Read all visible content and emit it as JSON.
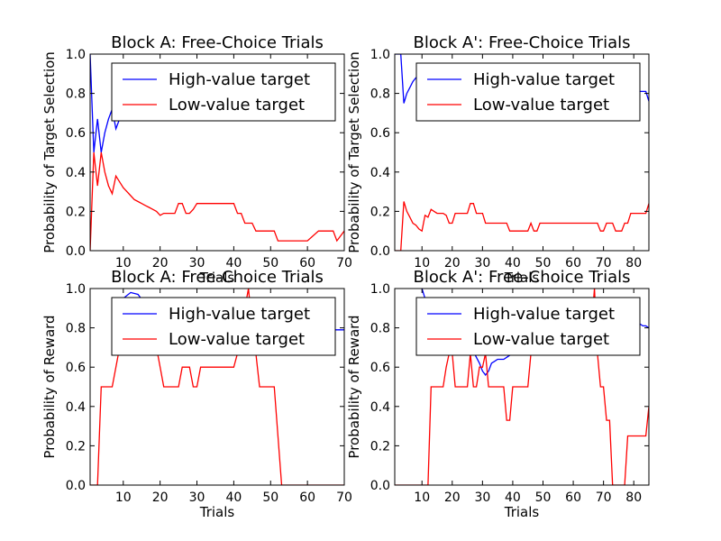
{
  "chart_data": [
    {
      "type": "line",
      "title": "Block A: Free-Choice Trials",
      "xlabel": "Trials",
      "ylabel": "Probability of Target Selection",
      "xlim": [
        1,
        70
      ],
      "ylim": [
        0,
        1
      ],
      "xticks": [
        10,
        20,
        30,
        40,
        50,
        60,
        70
      ],
      "yticks": [
        0.0,
        0.2,
        0.4,
        0.6,
        0.8,
        1.0
      ],
      "legend": "top-right",
      "series": [
        {
          "name": "High-value target",
          "color": "#0000ff",
          "x": [
            1,
            2,
            3,
            4,
            5,
            6,
            7,
            8,
            9,
            10,
            12,
            14
          ],
          "y": [
            1.0,
            0.5,
            0.67,
            0.5,
            0.6,
            0.67,
            0.72,
            0.62,
            0.67,
            0.7,
            0.73,
            0.76
          ]
        },
        {
          "name": "Low-value target",
          "color": "#ff0000",
          "x": [
            1,
            2,
            3,
            4,
            5,
            6,
            7,
            8,
            9,
            10,
            11,
            12,
            13,
            14,
            15,
            16,
            17,
            18,
            19,
            20,
            21,
            24,
            25,
            26,
            27,
            28,
            29,
            30,
            31,
            40,
            41,
            42,
            43,
            44,
            45,
            46,
            47,
            48,
            49,
            50,
            51,
            52,
            53,
            58,
            59,
            60,
            63,
            64,
            65,
            66,
            67,
            68,
            70
          ],
          "y": [
            0.0,
            0.5,
            0.33,
            0.5,
            0.4,
            0.33,
            0.29,
            0.38,
            0.35,
            0.32,
            0.3,
            0.28,
            0.26,
            0.25,
            0.24,
            0.23,
            0.22,
            0.21,
            0.2,
            0.18,
            0.19,
            0.19,
            0.24,
            0.24,
            0.19,
            0.19,
            0.21,
            0.24,
            0.24,
            0.24,
            0.19,
            0.19,
            0.14,
            0.14,
            0.14,
            0.1,
            0.1,
            0.1,
            0.1,
            0.1,
            0.1,
            0.05,
            0.05,
            0.05,
            0.05,
            0.05,
            0.1,
            0.1,
            0.1,
            0.1,
            0.1,
            0.05,
            0.1
          ]
        }
      ]
    },
    {
      "type": "line",
      "title": "Block A': Free-Choice Trials",
      "xlabel": "Trials",
      "ylabel": "Probability of Target Selection",
      "xlim": [
        1,
        85
      ],
      "ylim": [
        0,
        1
      ],
      "xticks": [
        10,
        20,
        30,
        40,
        50,
        60,
        70,
        80
      ],
      "yticks": [
        0.0,
        0.2,
        0.4,
        0.6,
        0.8,
        1.0
      ],
      "legend": "top-right",
      "series": [
        {
          "name": "High-value target",
          "color": "#0000ff",
          "x": [
            1,
            2,
            3,
            4,
            5,
            6,
            7,
            8,
            9,
            10,
            82,
            83,
            84,
            85
          ],
          "y": [
            1.0,
            1.0,
            1.0,
            0.75,
            0.8,
            0.83,
            0.86,
            0.88,
            0.89,
            0.9,
            0.81,
            0.81,
            0.81,
            0.76
          ]
        },
        {
          "name": "Low-value target",
          "color": "#ff0000",
          "x": [
            1,
            2,
            3,
            4,
            5,
            6,
            7,
            8,
            9,
            10,
            11,
            12,
            13,
            14,
            15,
            16,
            17,
            18,
            19,
            20,
            21,
            22,
            23,
            24,
            25,
            26,
            27,
            28,
            29,
            30,
            31,
            32,
            33,
            34,
            35,
            36,
            37,
            38,
            39,
            40,
            41,
            42,
            43,
            44,
            45,
            46,
            47,
            48,
            49,
            50,
            51,
            52,
            66,
            67,
            68,
            69,
            70,
            71,
            72,
            73,
            74,
            75,
            76,
            77,
            78,
            79,
            80,
            81,
            82,
            83,
            84,
            85
          ],
          "y": [
            0.0,
            0.0,
            0.0,
            0.25,
            0.2,
            0.17,
            0.14,
            0.13,
            0.11,
            0.1,
            0.18,
            0.17,
            0.21,
            0.2,
            0.19,
            0.19,
            0.19,
            0.18,
            0.14,
            0.14,
            0.19,
            0.19,
            0.19,
            0.19,
            0.19,
            0.24,
            0.24,
            0.19,
            0.19,
            0.19,
            0.14,
            0.14,
            0.14,
            0.14,
            0.14,
            0.14,
            0.14,
            0.14,
            0.1,
            0.1,
            0.1,
            0.1,
            0.1,
            0.1,
            0.1,
            0.14,
            0.1,
            0.1,
            0.14,
            0.14,
            0.14,
            0.14,
            0.14,
            0.14,
            0.14,
            0.1,
            0.1,
            0.14,
            0.14,
            0.14,
            0.1,
            0.1,
            0.1,
            0.14,
            0.14,
            0.19,
            0.19,
            0.19,
            0.19,
            0.19,
            0.19,
            0.24
          ]
        }
      ]
    },
    {
      "type": "line",
      "title": "Block A: Free-Choice Trials",
      "xlabel": "Trials",
      "ylabel": "Probability of Reward",
      "xlim": [
        1,
        70
      ],
      "ylim": [
        0,
        1
      ],
      "xticks": [
        10,
        20,
        30,
        40,
        50,
        60,
        70
      ],
      "yticks": [
        0.0,
        0.2,
        0.4,
        0.6,
        0.8,
        1.0
      ],
      "legend": "top-right",
      "series": [
        {
          "name": "High-value target",
          "color": "#0000ff",
          "x": [
            10,
            12,
            14,
            16,
            67,
            68,
            69,
            70
          ],
          "y": [
            0.95,
            0.98,
            0.97,
            0.92,
            0.79,
            0.79,
            0.79,
            0.79
          ]
        },
        {
          "name": "Low-value target",
          "color": "#ff0000",
          "x": [
            1,
            3,
            4,
            5,
            6,
            7,
            8,
            9,
            19,
            20,
            21,
            22,
            23,
            24,
            25,
            26,
            27,
            28,
            29,
            30,
            31,
            32,
            38,
            39,
            40,
            41,
            42,
            43,
            44,
            45,
            46,
            47,
            48,
            49,
            50,
            51,
            52,
            53,
            70
          ],
          "y": [
            0.0,
            0.0,
            0.5,
            0.5,
            0.5,
            0.5,
            0.6,
            0.7,
            0.7,
            0.6,
            0.5,
            0.5,
            0.5,
            0.5,
            0.5,
            0.6,
            0.6,
            0.6,
            0.5,
            0.5,
            0.6,
            0.6,
            0.6,
            0.6,
            0.6,
            0.67,
            0.8,
            0.9,
            1.0,
            0.8,
            0.67,
            0.5,
            0.5,
            0.5,
            0.5,
            0.5,
            0.25,
            0.0,
            0.0
          ]
        }
      ]
    },
    {
      "type": "line",
      "title": "Block A': Free-Choice Trials",
      "xlabel": "Trials",
      "ylabel": "Probability of Reward",
      "xlim": [
        1,
        85
      ],
      "ylim": [
        0,
        1
      ],
      "xticks": [
        10,
        20,
        30,
        40,
        50,
        60,
        70,
        80
      ],
      "yticks": [
        0.0,
        0.2,
        0.4,
        0.6,
        0.8,
        1.0
      ],
      "legend": "top-right",
      "series": [
        {
          "name": "High-value target",
          "color": "#0000ff",
          "x": [
            10,
            11,
            12,
            13,
            27,
            28,
            29,
            30,
            31,
            32,
            33,
            34,
            35,
            36,
            37,
            38,
            39,
            40,
            80,
            81,
            82,
            83,
            84,
            85
          ],
          "y": [
            1.0,
            0.95,
            0.92,
            0.9,
            0.68,
            0.65,
            0.62,
            0.58,
            0.56,
            0.58,
            0.62,
            0.63,
            0.64,
            0.64,
            0.64,
            0.65,
            0.66,
            0.67,
            0.88,
            0.85,
            0.82,
            0.81,
            0.81,
            0.8
          ]
        },
        {
          "name": "Low-value target",
          "color": "#ff0000",
          "x": [
            1,
            12,
            13,
            14,
            15,
            16,
            17,
            18,
            19,
            20,
            21,
            22,
            23,
            24,
            25,
            26,
            27,
            28,
            29,
            30,
            31,
            32,
            33,
            34,
            35,
            36,
            37,
            38,
            39,
            40,
            41,
            42,
            43,
            44,
            45,
            46,
            47,
            66,
            67,
            68,
            69,
            70,
            71,
            72,
            73,
            74,
            75,
            76,
            77,
            78,
            79,
            80,
            81,
            82,
            83,
            84,
            85
          ],
          "y": [
            0.0,
            0.0,
            0.5,
            0.5,
            0.5,
            0.5,
            0.5,
            0.6,
            0.67,
            0.67,
            0.5,
            0.5,
            0.5,
            0.5,
            0.5,
            0.67,
            0.5,
            0.5,
            0.6,
            0.6,
            0.67,
            0.5,
            0.5,
            0.5,
            0.5,
            0.5,
            0.5,
            0.33,
            0.33,
            0.5,
            0.5,
            0.5,
            0.5,
            0.5,
            0.5,
            0.67,
            0.8,
            0.8,
            1.0,
            0.67,
            0.5,
            0.5,
            0.33,
            0.33,
            0.0,
            0.0,
            0.0,
            0.0,
            0.0,
            0.25,
            0.25,
            0.25,
            0.25,
            0.25,
            0.25,
            0.25,
            0.4
          ]
        }
      ]
    }
  ]
}
